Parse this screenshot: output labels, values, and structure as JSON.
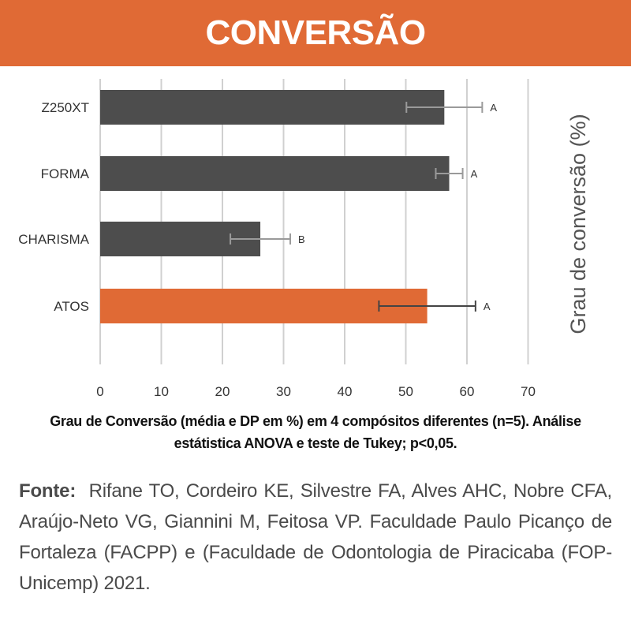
{
  "header": {
    "title": "CONVERSÃO"
  },
  "colors": {
    "header_bg": "#E06A35",
    "bar_default": "#4D4D4D",
    "bar_highlight": "#E06A35",
    "grid": "#D0D0D0",
    "error_default": "#9A9A9A",
    "error_highlight": "#444444"
  },
  "chart_data": {
    "type": "bar",
    "orientation": "horizontal",
    "categories": [
      "Z250XT",
      "FORMA",
      "CHARISMA",
      "ATOS"
    ],
    "values": [
      56.3,
      57.1,
      26.2,
      53.5
    ],
    "errors": [
      6.2,
      2.2,
      4.9,
      7.9
    ],
    "significance": [
      "A",
      "A",
      "B",
      "A"
    ],
    "highlight": [
      "ATOS"
    ],
    "xlim": [
      0,
      70
    ],
    "x_ticks": [
      "0",
      "10",
      "20",
      "30",
      "40",
      "50",
      "60",
      "70"
    ],
    "ylabel_right": "Grau de conversão (%)",
    "grid": true
  },
  "caption": "Grau de Conversão (média e DP em %) em 4 compósitos diferentes (n=5). Análise estátistica ANOVA e teste de Tukey; p<0,05.",
  "source": {
    "label": "Fonte:",
    "text": "Rifane TO, Cordeiro KE, Silvestre FA, Alves AHC, Nobre CFA, Araújo-Neto VG, Giannini M, Feitosa VP. Faculdade Paulo Picanço de Fortaleza (FACPP) e (Faculdade de Odontologia de Piracicaba (FOP-Unicemp) 2021."
  }
}
